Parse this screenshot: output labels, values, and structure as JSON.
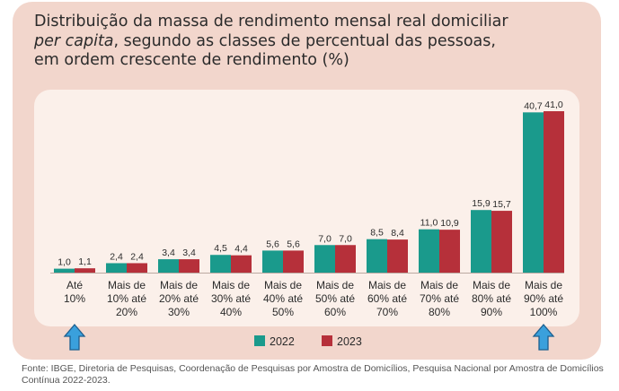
{
  "title": {
    "line1": "Distribuição da massa de rendimento mensal real domiciliar",
    "line2_italic": "per capita",
    "line2_rest": ", segundo as classes de percentual das pessoas,",
    "line3": "em ordem crescente de rendimento (%)"
  },
  "source": "Fonte: IBGE, Diretoria de Pesquisas, Coordenação de Pesquisas por Amostra de Domicílios, Pesquisa Nacional por Amostra de Domicílios Contínua 2022-2023.",
  "colors": {
    "series_2022": "#1a9a8c",
    "series_2023": "#b6303a",
    "arrow": "#3aa0dc",
    "card_bg": "#f2d6cc",
    "plot_bg": "#fbf0ea"
  },
  "icons": {
    "arrows": "up-arrow-icon"
  },
  "chart_data": {
    "type": "bar",
    "categories": [
      [
        "Até",
        "10%"
      ],
      [
        "Mais de",
        "10% até",
        "20%"
      ],
      [
        "Mais de",
        "20% até",
        "30%"
      ],
      [
        "Mais de",
        "30% até",
        "40%"
      ],
      [
        "Mais de",
        "40% até",
        "50%"
      ],
      [
        "Mais de",
        "50% até",
        "60%"
      ],
      [
        "Mais de",
        "60% até",
        "70%"
      ],
      [
        "Mais de",
        "70% até",
        "80%"
      ],
      [
        "Mais de",
        "80% até",
        "90%"
      ],
      [
        "Mais de",
        "90% até",
        "100%"
      ]
    ],
    "series": [
      {
        "name": "2022",
        "values": [
          1.0,
          2.4,
          3.4,
          4.5,
          5.6,
          7.0,
          8.5,
          11.0,
          15.9,
          40.7
        ],
        "labels": [
          "1,0",
          "2,4",
          "3,4",
          "4,5",
          "5,6",
          "7,0",
          "8,5",
          "11,0",
          "15,9",
          "40,7"
        ]
      },
      {
        "name": "2023",
        "values": [
          1.1,
          2.4,
          3.4,
          4.4,
          5.6,
          7.0,
          8.4,
          10.9,
          15.7,
          41.0
        ],
        "labels": [
          "1,1",
          "2,4",
          "3,4",
          "4,4",
          "5,6",
          "7,0",
          "8,4",
          "10,9",
          "15,7",
          "41,0"
        ]
      }
    ],
    "ylim": [
      0,
      41
    ],
    "legend_position": "bottom-center",
    "grid": false,
    "highlight_categories": [
      0,
      9
    ]
  }
}
